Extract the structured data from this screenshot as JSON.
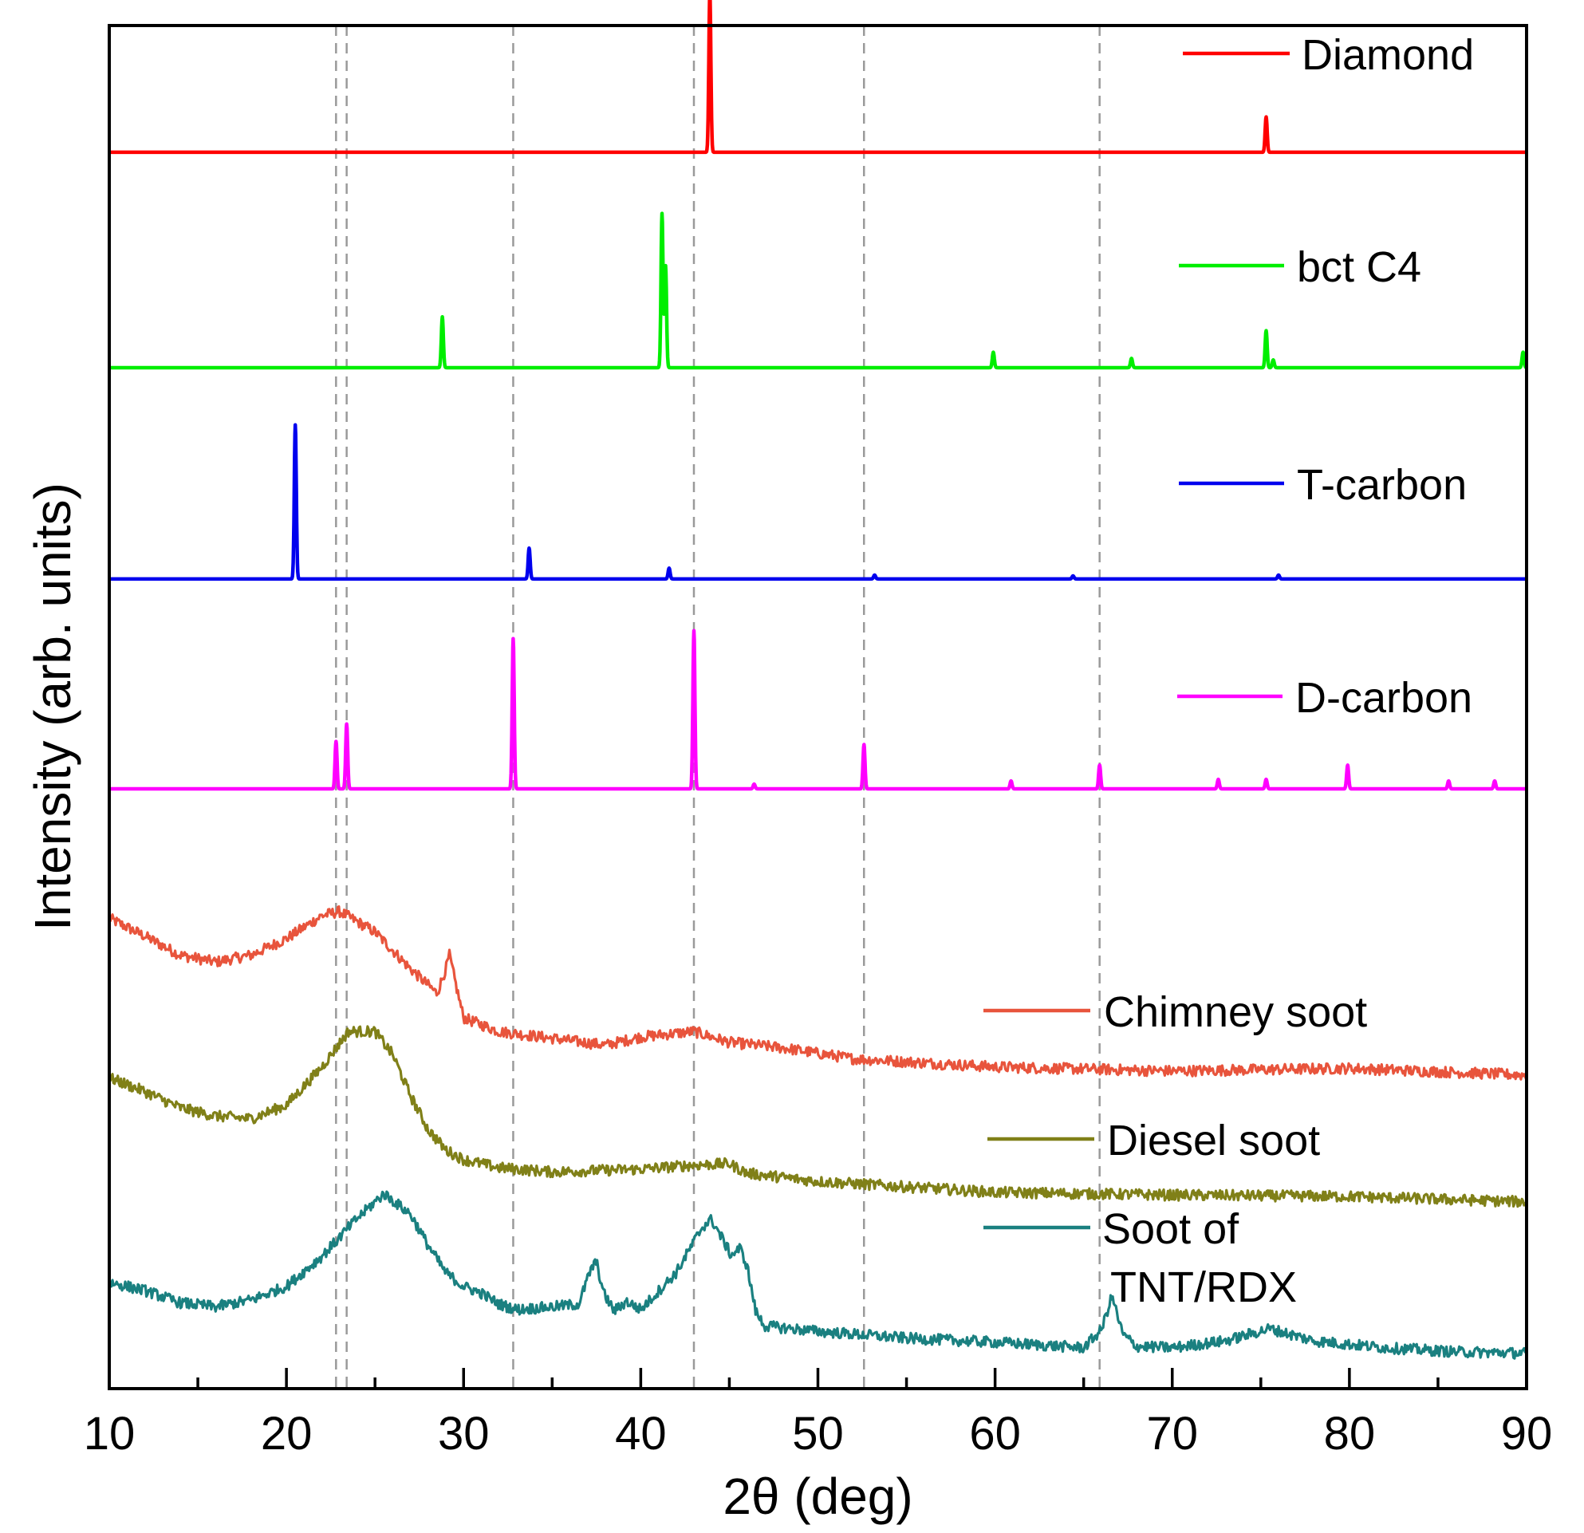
{
  "chart_data": {
    "type": "line",
    "title": "",
    "xlabel": "2θ (deg)",
    "ylabel": "Intensity (arb. units)",
    "xlim": [
      10,
      90
    ],
    "x_ticks": [
      "10",
      "20",
      "30",
      "40",
      "50",
      "60",
      "70",
      "80",
      "90"
    ],
    "y_ticks": [],
    "grid": false,
    "legend_placement": "right, beside each trace",
    "reference_lines_x": [
      22.8,
      23.4,
      32.8,
      43.0,
      52.6,
      65.9
    ],
    "series": [
      {
        "name": "Diamond",
        "color": "#ff0000",
        "kind": "peaks",
        "baseline_level": 0.907,
        "peaks": [
          {
            "x": 43.9,
            "h": 1.0
          },
          {
            "x": 75.3,
            "h": 0.22
          }
        ]
      },
      {
        "name": "bct C4",
        "color": "#00ee00",
        "kind": "peaks",
        "baseline_level": 0.749,
        "peaks": [
          {
            "x": 28.8,
            "h": 0.33
          },
          {
            "x": 41.2,
            "h": 1.0
          },
          {
            "x": 41.4,
            "h": 0.66
          },
          {
            "x": 59.9,
            "h": 0.1
          },
          {
            "x": 67.7,
            "h": 0.06
          },
          {
            "x": 75.3,
            "h": 0.24
          },
          {
            "x": 75.7,
            "h": 0.05
          },
          {
            "x": 89.8,
            "h": 0.1
          }
        ]
      },
      {
        "name": "T-carbon",
        "color": "#0000ee",
        "kind": "peaks",
        "baseline_level": 0.594,
        "peaks": [
          {
            "x": 20.5,
            "h": 1.0
          },
          {
            "x": 33.7,
            "h": 0.2
          },
          {
            "x": 41.6,
            "h": 0.07
          },
          {
            "x": 53.2,
            "h": 0.025
          },
          {
            "x": 64.4,
            "h": 0.02
          },
          {
            "x": 76.0,
            "h": 0.025
          }
        ]
      },
      {
        "name": "D-carbon",
        "color": "#ff00ff",
        "kind": "peaks",
        "baseline_level": 0.44,
        "peaks": [
          {
            "x": 22.8,
            "h": 0.3
          },
          {
            "x": 23.4,
            "h": 0.41
          },
          {
            "x": 32.8,
            "h": 0.95
          },
          {
            "x": 43.0,
            "h": 1.0
          },
          {
            "x": 46.4,
            "h": 0.03
          },
          {
            "x": 52.6,
            "h": 0.28
          },
          {
            "x": 60.9,
            "h": 0.05
          },
          {
            "x": 65.9,
            "h": 0.15
          },
          {
            "x": 72.6,
            "h": 0.06
          },
          {
            "x": 75.3,
            "h": 0.06
          },
          {
            "x": 79.9,
            "h": 0.15
          },
          {
            "x": 85.6,
            "h": 0.05
          },
          {
            "x": 88.2,
            "h": 0.05
          }
        ]
      },
      {
        "name": "Chimney soot",
        "color": "#e8543c",
        "kind": "profile",
        "noise": 0.004,
        "x": [
          10,
          12,
          14,
          16,
          18,
          20,
          22,
          23,
          25,
          27,
          28.5,
          29.0,
          29.2,
          29.5,
          30.0,
          32,
          35,
          38,
          40,
          43,
          45,
          48,
          52,
          60,
          70,
          80,
          90
        ],
        "y": [
          0.345,
          0.332,
          0.318,
          0.313,
          0.318,
          0.33,
          0.347,
          0.35,
          0.335,
          0.308,
          0.29,
          0.308,
          0.318,
          0.3,
          0.272,
          0.262,
          0.257,
          0.252,
          0.258,
          0.262,
          0.254,
          0.25,
          0.242,
          0.236,
          0.233,
          0.235,
          0.23
        ]
      },
      {
        "name": "Diesel soot",
        "color": "#808018",
        "kind": "profile",
        "noise": 0.004,
        "x": [
          10,
          12,
          14,
          16,
          18,
          20,
          22,
          23.5,
          25,
          26,
          27,
          28,
          29,
          30,
          32,
          35,
          40,
          43,
          45,
          46,
          50,
          55,
          60,
          70,
          80,
          90
        ],
        "y": [
          0.228,
          0.218,
          0.206,
          0.2,
          0.198,
          0.208,
          0.236,
          0.262,
          0.262,
          0.245,
          0.215,
          0.19,
          0.175,
          0.168,
          0.162,
          0.159,
          0.161,
          0.164,
          0.165,
          0.158,
          0.152,
          0.148,
          0.144,
          0.142,
          0.141,
          0.137
        ]
      },
      {
        "name": "Soot of TNT/RDX",
        "label_lines": [
          "Soot of",
          "TNT/RDX"
        ],
        "color": "#1a8080",
        "kind": "profile",
        "noise": 0.004,
        "x": [
          10,
          12,
          14,
          16,
          18,
          20,
          22,
          24,
          25.5,
          27,
          28,
          29,
          30,
          31,
          32,
          33,
          35,
          36.5,
          37.2,
          37.5,
          37.9,
          38.5,
          39.2,
          40,
          42,
          43.5,
          44.0,
          44.6,
          45.1,
          45.6,
          46.0,
          46.5,
          47,
          50,
          55,
          60,
          65,
          66.0,
          66.6,
          67.2,
          68,
          70,
          73,
          75.5,
          78,
          82,
          86,
          90
        ],
        "y": [
          0.078,
          0.072,
          0.063,
          0.06,
          0.065,
          0.075,
          0.097,
          0.125,
          0.143,
          0.128,
          0.105,
          0.085,
          0.075,
          0.07,
          0.062,
          0.058,
          0.06,
          0.062,
          0.088,
          0.093,
          0.07,
          0.057,
          0.064,
          0.058,
          0.085,
          0.119,
          0.124,
          0.11,
          0.098,
          0.103,
          0.09,
          0.056,
          0.046,
          0.042,
          0.037,
          0.034,
          0.03,
          0.043,
          0.068,
          0.04,
          0.031,
          0.03,
          0.035,
          0.044,
          0.035,
          0.03,
          0.027,
          0.026
        ]
      }
    ]
  }
}
